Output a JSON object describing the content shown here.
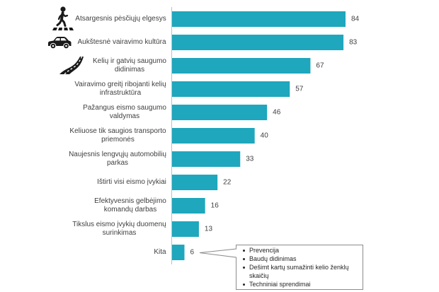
{
  "chart_data": {
    "type": "bar",
    "orientation": "horizontal",
    "categories": [
      "Atsargesnis pėsčiųjų elgesys",
      "Aukštesnė vairavimo kultūra",
      "Kelių ir gatvių saugumo didinimas",
      "Vairavimo greitį ribojanti kelių infrastruktūra",
      "Pažangus eismo saugumo valdymas",
      "Keliuose tik saugios transporto priemonės",
      "Naujesnis lengvųjų automobilių parkas",
      "Ištirti visi eismo įvykiai",
      "Efektyvesnis gelbėjimo komandų darbas",
      "Tikslus eismo įvykių duomenų surinkimas",
      "Kita"
    ],
    "values": [
      84,
      83,
      67,
      57,
      46,
      40,
      33,
      22,
      16,
      13,
      6
    ],
    "xlim": [
      0,
      90
    ],
    "grid": false,
    "legend": "none",
    "data_labels": true,
    "category_icons": [
      {
        "category_index": 0,
        "icon": "pedestrian-icon"
      },
      {
        "category_index": 1,
        "icon": "car-icon"
      },
      {
        "category_index": 2,
        "icon": "road-icon"
      }
    ],
    "annotation": {
      "type": "callout",
      "points_to_category_index": 10,
      "items": [
        "Prevencija",
        "Baudų didinimas",
        "Dešimt kartų sumažinti kelio ženklų skaičių",
        "Techniniai sprendimai"
      ]
    }
  },
  "colors": {
    "bar": "#1ea7bd",
    "text": "#404040",
    "axis_line": "#bfbfbf",
    "callout_border": "#8c8c8c",
    "icon": "#1a1a1a"
  }
}
